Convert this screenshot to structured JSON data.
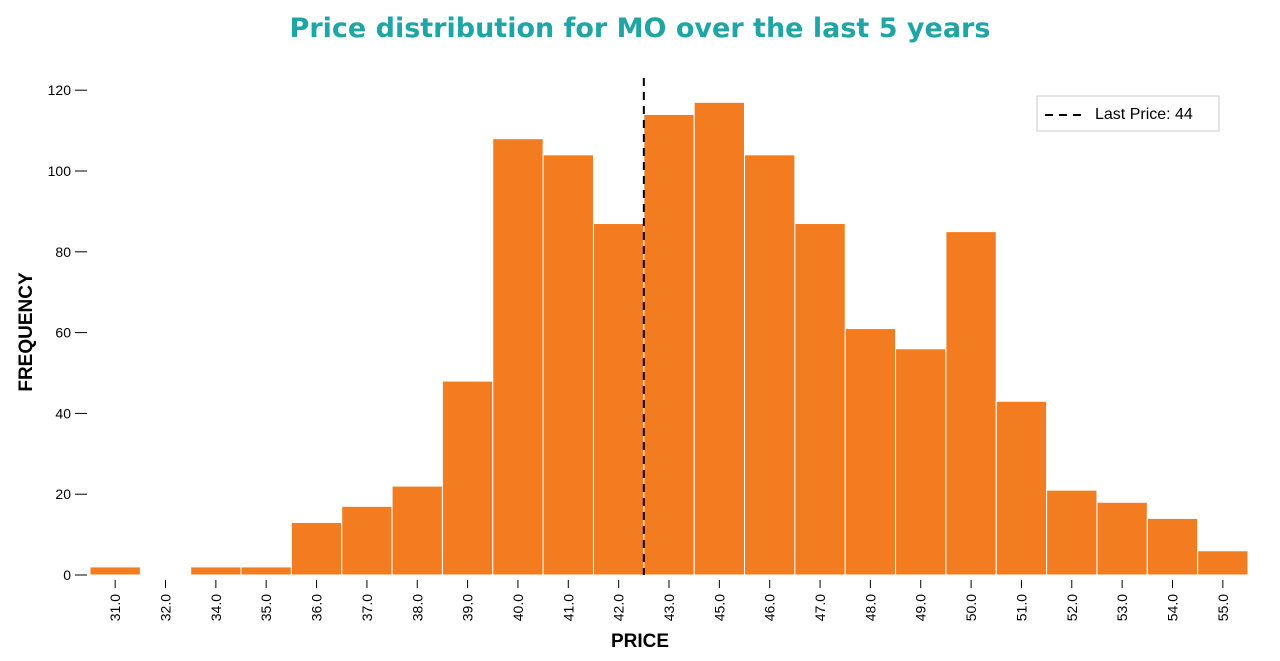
{
  "chart_data": {
    "type": "bar",
    "title": "Price distribution for MO over the last 5 years",
    "xlabel": "PRICE",
    "ylabel": "FREQUENCY",
    "categories": [
      "31.0",
      "32.0",
      "34.0",
      "35.0",
      "36.0",
      "37.0",
      "38.0",
      "39.0",
      "40.0",
      "41.0",
      "42.0",
      "43.0",
      "45.0",
      "46.0",
      "47.0",
      "48.0",
      "49.0",
      "50.0",
      "51.0",
      "52.0",
      "53.0",
      "54.0",
      "55.0"
    ],
    "values": [
      2,
      0,
      2,
      2,
      13,
      17,
      22,
      48,
      108,
      104,
      87,
      114,
      117,
      104,
      87,
      61,
      56,
      85,
      43,
      21,
      18,
      14,
      6
    ],
    "ylim": [
      0,
      125
    ],
    "yticks": [
      0,
      20,
      40,
      60,
      80,
      100,
      120
    ],
    "grid": false,
    "bar_color": "#f47c20",
    "last_price": {
      "label": "Last Price: 44",
      "value": 44,
      "position_between_categories": [
        10,
        11
      ]
    },
    "legend": {
      "placement": "top-right",
      "entries": [
        "Last Price: 44"
      ]
    },
    "title_color": "#1fa5a5"
  }
}
